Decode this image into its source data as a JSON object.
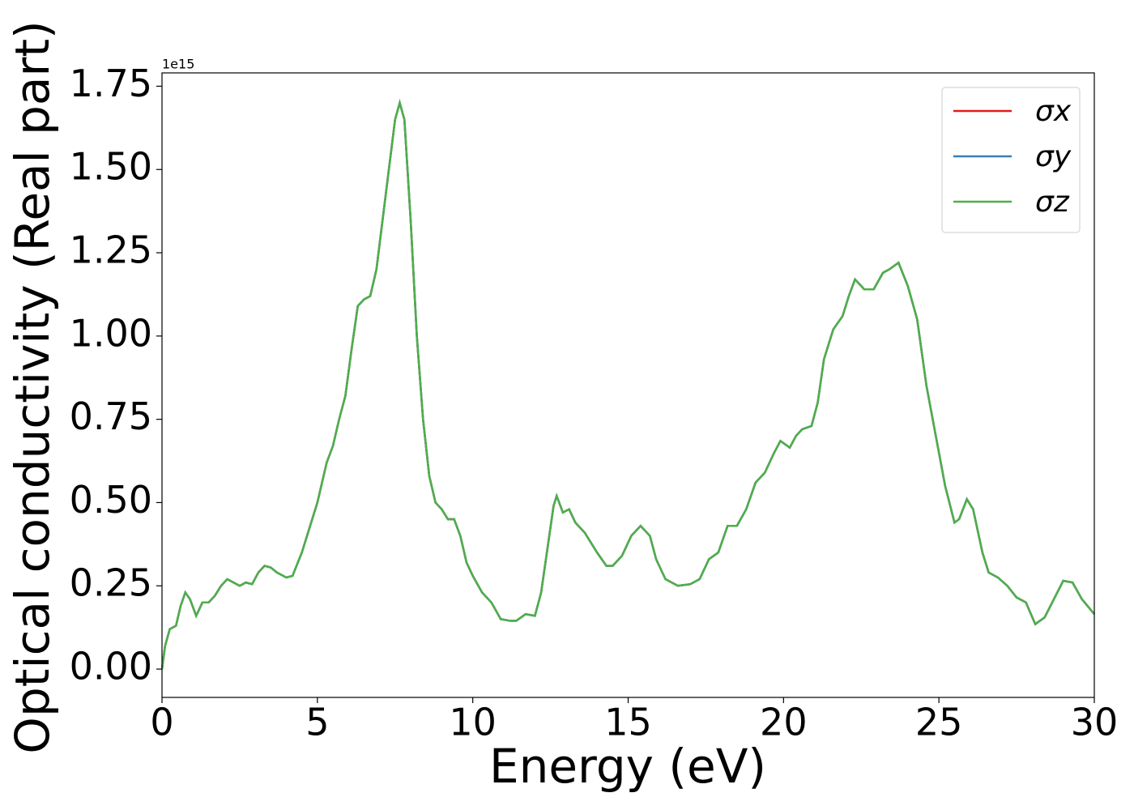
{
  "chart_data": {
    "type": "line",
    "xlabel": "Energy (eV)",
    "ylabel": "Optical conductivity (Real part)",
    "y_scale_label": "1e15",
    "x": [
      0,
      0.1,
      0.25,
      0.45,
      0.6,
      0.75,
      0.9,
      1.1,
      1.3,
      1.5,
      1.7,
      1.9,
      2.1,
      2.3,
      2.5,
      2.7,
      2.9,
      3.1,
      3.3,
      3.5,
      3.7,
      4.0,
      4.2,
      4.5,
      4.8,
      5.0,
      5.3,
      5.5,
      5.7,
      5.9,
      6.1,
      6.3,
      6.5,
      6.7,
      6.9,
      7.1,
      7.3,
      7.5,
      7.65,
      7.8,
      8.0,
      8.2,
      8.4,
      8.6,
      8.8,
      9.0,
      9.2,
      9.4,
      9.6,
      9.8,
      10.0,
      10.3,
      10.6,
      10.9,
      11.2,
      11.4,
      11.7,
      12.0,
      12.2,
      12.4,
      12.6,
      12.7,
      12.9,
      13.1,
      13.3,
      13.6,
      14.0,
      14.3,
      14.5,
      14.8,
      15.1,
      15.4,
      15.7,
      15.9,
      16.2,
      16.6,
      17.0,
      17.3,
      17.6,
      17.9,
      18.2,
      18.5,
      18.8,
      19.1,
      19.4,
      19.7,
      19.9,
      20.2,
      20.4,
      20.6,
      20.9,
      21.1,
      21.3,
      21.6,
      21.9,
      22.1,
      22.3,
      22.6,
      22.9,
      23.2,
      23.4,
      23.7,
      24.0,
      24.3,
      24.6,
      24.9,
      25.2,
      25.5,
      25.65,
      25.9,
      26.1,
      26.4,
      26.6,
      26.9,
      27.2,
      27.5,
      27.8,
      28.1,
      28.4,
      28.7,
      29.0,
      29.3,
      29.6,
      30.0
    ],
    "series": [
      {
        "name": "σx",
        "color": "#e41a1c",
        "values": [
          0,
          0.07,
          0.12,
          0.13,
          0.19,
          0.23,
          0.21,
          0.16,
          0.2,
          0.2,
          0.22,
          0.25,
          0.27,
          0.26,
          0.25,
          0.26,
          0.255,
          0.29,
          0.31,
          0.305,
          0.29,
          0.275,
          0.28,
          0.35,
          0.44,
          0.5,
          0.62,
          0.67,
          0.75,
          0.82,
          0.96,
          1.09,
          1.11,
          1.12,
          1.2,
          1.35,
          1.5,
          1.65,
          1.7,
          1.65,
          1.35,
          1.0,
          0.75,
          0.58,
          0.5,
          0.48,
          0.45,
          0.45,
          0.4,
          0.32,
          0.28,
          0.23,
          0.2,
          0.15,
          0.145,
          0.145,
          0.165,
          0.16,
          0.23,
          0.36,
          0.49,
          0.52,
          0.47,
          0.48,
          0.44,
          0.41,
          0.35,
          0.31,
          0.31,
          0.34,
          0.4,
          0.43,
          0.4,
          0.33,
          0.27,
          0.25,
          0.255,
          0.27,
          0.33,
          0.35,
          0.43,
          0.43,
          0.48,
          0.56,
          0.59,
          0.65,
          0.685,
          0.665,
          0.7,
          0.72,
          0.73,
          0.8,
          0.93,
          1.02,
          1.06,
          1.12,
          1.17,
          1.14,
          1.14,
          1.19,
          1.2,
          1.22,
          1.15,
          1.05,
          0.85,
          0.7,
          0.55,
          0.44,
          0.45,
          0.51,
          0.48,
          0.35,
          0.29,
          0.275,
          0.25,
          0.215,
          0.2,
          0.135,
          0.155,
          0.21,
          0.265,
          0.26,
          0.21,
          0.165
        ]
      },
      {
        "name": "σy",
        "color": "#377eb8",
        "values": [
          0,
          0.07,
          0.12,
          0.13,
          0.19,
          0.23,
          0.21,
          0.16,
          0.2,
          0.2,
          0.22,
          0.25,
          0.27,
          0.26,
          0.25,
          0.26,
          0.255,
          0.29,
          0.31,
          0.305,
          0.29,
          0.275,
          0.28,
          0.35,
          0.44,
          0.5,
          0.62,
          0.67,
          0.75,
          0.82,
          0.96,
          1.09,
          1.11,
          1.12,
          1.2,
          1.35,
          1.5,
          1.65,
          1.7,
          1.65,
          1.35,
          1.0,
          0.75,
          0.58,
          0.5,
          0.48,
          0.45,
          0.45,
          0.4,
          0.32,
          0.28,
          0.23,
          0.2,
          0.15,
          0.145,
          0.145,
          0.165,
          0.16,
          0.23,
          0.36,
          0.49,
          0.52,
          0.47,
          0.48,
          0.44,
          0.41,
          0.35,
          0.31,
          0.31,
          0.34,
          0.4,
          0.43,
          0.4,
          0.33,
          0.27,
          0.25,
          0.255,
          0.27,
          0.33,
          0.35,
          0.43,
          0.43,
          0.48,
          0.56,
          0.59,
          0.65,
          0.685,
          0.665,
          0.7,
          0.72,
          0.73,
          0.8,
          0.93,
          1.02,
          1.06,
          1.12,
          1.17,
          1.14,
          1.14,
          1.19,
          1.2,
          1.22,
          1.15,
          1.05,
          0.85,
          0.7,
          0.55,
          0.44,
          0.45,
          0.51,
          0.48,
          0.35,
          0.29,
          0.275,
          0.25,
          0.215,
          0.2,
          0.135,
          0.155,
          0.21,
          0.265,
          0.26,
          0.21,
          0.165
        ]
      },
      {
        "name": "σz",
        "color": "#4daf4a",
        "values": [
          0,
          0.07,
          0.12,
          0.13,
          0.19,
          0.23,
          0.21,
          0.16,
          0.2,
          0.2,
          0.22,
          0.25,
          0.27,
          0.26,
          0.25,
          0.26,
          0.255,
          0.29,
          0.31,
          0.305,
          0.29,
          0.275,
          0.28,
          0.35,
          0.44,
          0.5,
          0.62,
          0.67,
          0.75,
          0.82,
          0.96,
          1.09,
          1.11,
          1.12,
          1.2,
          1.35,
          1.5,
          1.65,
          1.7,
          1.65,
          1.35,
          1.0,
          0.75,
          0.58,
          0.5,
          0.48,
          0.45,
          0.45,
          0.4,
          0.32,
          0.28,
          0.23,
          0.2,
          0.15,
          0.145,
          0.145,
          0.165,
          0.16,
          0.23,
          0.36,
          0.49,
          0.52,
          0.47,
          0.48,
          0.44,
          0.41,
          0.35,
          0.31,
          0.31,
          0.34,
          0.4,
          0.43,
          0.4,
          0.33,
          0.27,
          0.25,
          0.255,
          0.27,
          0.33,
          0.35,
          0.43,
          0.43,
          0.48,
          0.56,
          0.59,
          0.65,
          0.685,
          0.665,
          0.7,
          0.72,
          0.73,
          0.8,
          0.93,
          1.02,
          1.06,
          1.12,
          1.17,
          1.14,
          1.14,
          1.19,
          1.2,
          1.22,
          1.15,
          1.05,
          0.85,
          0.7,
          0.55,
          0.44,
          0.45,
          0.51,
          0.48,
          0.35,
          0.29,
          0.275,
          0.25,
          0.215,
          0.2,
          0.135,
          0.155,
          0.21,
          0.265,
          0.26,
          0.21,
          0.165
        ]
      }
    ],
    "xlim": [
      0,
      30
    ],
    "xticks": [
      0,
      5,
      10,
      15,
      20,
      25,
      30
    ],
    "ylim": [
      -0.085,
      1.79
    ],
    "yticks": [
      {
        "value": 0,
        "label": "0.00"
      },
      {
        "value": 0.25,
        "label": "0.25"
      },
      {
        "value": 0.5,
        "label": "0.50"
      },
      {
        "value": 0.75,
        "label": "0.75"
      },
      {
        "value": 1,
        "label": "1.00"
      },
      {
        "value": 1.25,
        "label": "1.25"
      },
      {
        "value": 1.5,
        "label": "1.50"
      },
      {
        "value": 1.75,
        "label": "1.75"
      }
    ],
    "legend": "upper right",
    "grid": false
  }
}
